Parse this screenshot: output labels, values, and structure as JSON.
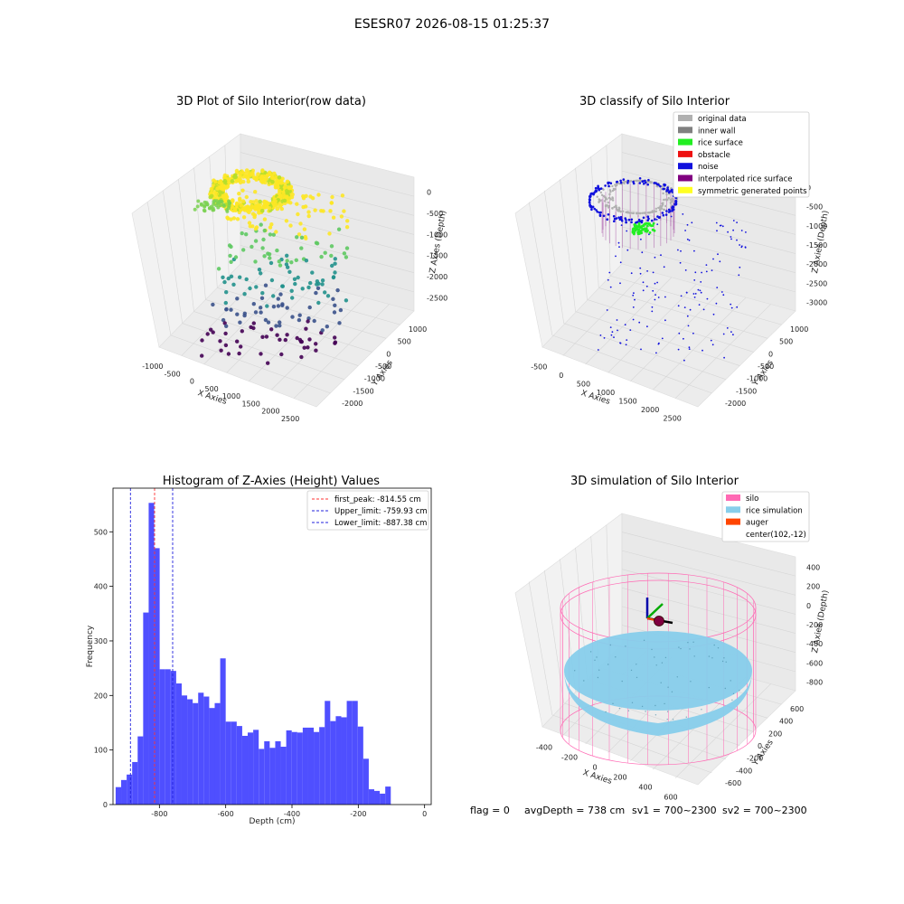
{
  "figure": {
    "title": "ESESR07 2026-08-15 01:25:37",
    "status": {
      "flag": "flag = 0",
      "avg_depth": "avgDepth = 738 cm",
      "sv1": "sv1 = 700~2300",
      "sv2": "sv2 = 700~2300"
    }
  },
  "chart_data": [
    {
      "type": "scatter",
      "title": "3D Plot of Silo Interior(row data)",
      "xlabel": "X Axies",
      "ylabel": "Y Axies",
      "zlabel": "Z Axies (Depth)",
      "x_ticks": [
        "-1000",
        "-500",
        "0",
        "500",
        "1000",
        "1500",
        "2000",
        "2500"
      ],
      "y_ticks": [
        "1000",
        "500",
        "0",
        "-500",
        "-1000",
        "-1500",
        "-2000"
      ],
      "z_ticks": [
        "0",
        "-500",
        "-1000",
        "-1500",
        "-2000",
        "-2500"
      ],
      "colormap": [
        "#440154",
        "#3b528b",
        "#21918c",
        "#5ec962",
        "#fde725"
      ]
    },
    {
      "type": "scatter",
      "title": "3D classify of Silo Interior",
      "xlabel": "X Axies",
      "ylabel": "Y Axies",
      "zlabel": "Z Axies (Depth)",
      "x_ticks": [
        "-500",
        "0",
        "500",
        "1000",
        "1500",
        "2000",
        "2500"
      ],
      "y_ticks": [
        "1000",
        "500",
        "0",
        "-500",
        "-1000",
        "-1500",
        "-2000"
      ],
      "z_ticks": [
        "0",
        "-500",
        "-1000",
        "-1500",
        "-2000",
        "-2500",
        "-3000"
      ],
      "legend_position": "top-right",
      "legend": [
        {
          "label": "original data",
          "color": "#b0b0b0"
        },
        {
          "label": "inner wall",
          "color": "#808080"
        },
        {
          "label": "rice surface",
          "color": "#22ee22"
        },
        {
          "label": "obstacle",
          "color": "#ee1111"
        },
        {
          "label": "noise",
          "color": "#1111dd"
        },
        {
          "label": "interpolated rice surface",
          "color": "#800080"
        },
        {
          "label": "symmetric generated points",
          "color": "#ffff22"
        }
      ]
    },
    {
      "type": "bar",
      "title": "Histogram of Z-Axies (Height) Values",
      "xlabel": "Depth (cm)",
      "ylabel": "Frequency",
      "xlim": [
        -940,
        20
      ],
      "ylim": [
        0,
        580
      ],
      "bin_width": 16.6,
      "bin_start": -932,
      "bar_color": "#4f4fff",
      "values": [
        32,
        45,
        55,
        78,
        125,
        352,
        553,
        470,
        248,
        248,
        245,
        222,
        200,
        193,
        186,
        205,
        198,
        177,
        186,
        268,
        152,
        152,
        144,
        126,
        132,
        137,
        102,
        116,
        104,
        116,
        106,
        136,
        133,
        132,
        141,
        141,
        133,
        142,
        190,
        153,
        162,
        160,
        190,
        190,
        143,
        84,
        28,
        25,
        20,
        33
      ],
      "x_ticks": [
        -800,
        -600,
        -400,
        -200,
        0
      ],
      "y_ticks": [
        0,
        100,
        200,
        300,
        400,
        500
      ],
      "legend_position": "top-right",
      "vlines": [
        {
          "label": "first_peak: -814.55 cm",
          "x": -814.55,
          "color": "#ff3333"
        },
        {
          "label": "Upper_limit: -759.93 cm",
          "x": -759.93,
          "color": "#2222dd"
        },
        {
          "label": "Lower_limit: -887.38 cm",
          "x": -887.38,
          "color": "#2222dd"
        }
      ]
    },
    {
      "type": "scatter",
      "title": "3D simulation of Silo Interior",
      "xlabel": "X Axies",
      "ylabel": "Y Axies",
      "zlabel": "Z Axies (Depth)",
      "x_ticks": [
        "-400",
        "-200",
        "0",
        "200",
        "400",
        "600"
      ],
      "y_ticks": [
        "600",
        "400",
        "200",
        "0",
        "-200",
        "-400",
        "-600"
      ],
      "z_ticks": [
        "400",
        "200",
        "0",
        "-200",
        "-400",
        "-600",
        "-800"
      ],
      "legend_position": "top-right",
      "legend": [
        {
          "label": "silo",
          "color": "#ff69b4"
        },
        {
          "label": "rice simulation",
          "color": "#87ceeb"
        },
        {
          "label": "auger",
          "color": "#ff4500"
        },
        {
          "label": "center(102,-12)",
          "color": "none"
        }
      ]
    }
  ]
}
